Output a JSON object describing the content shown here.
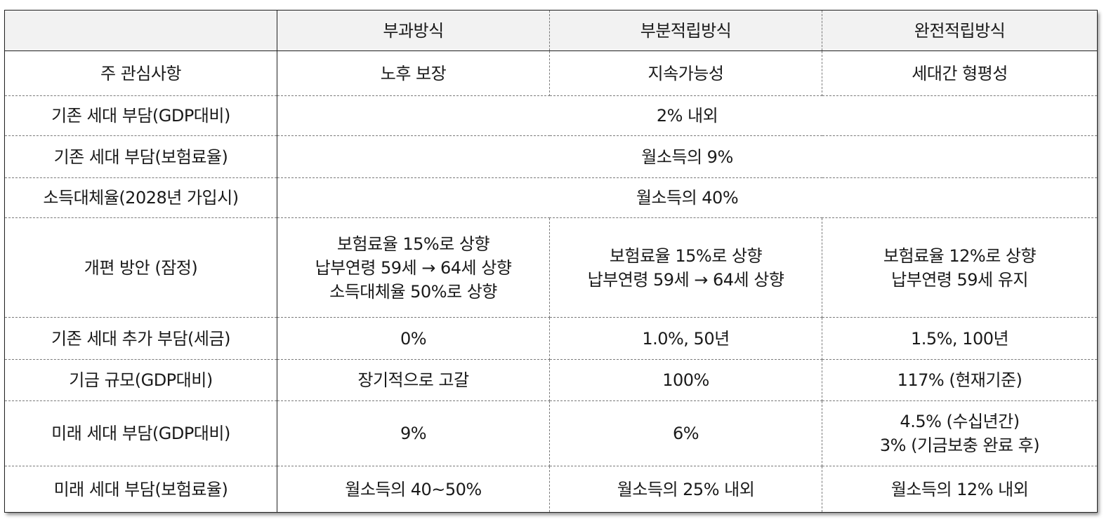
{
  "header": {
    "corner": "",
    "col1": "부과방식",
    "col2": "부분적립방식",
    "col3": "완전적립방식"
  },
  "rows": {
    "concern": {
      "label": "주 관심사항",
      "c1": "노후 보장",
      "c2": "지속가능성",
      "c3": "세대간 형평성"
    },
    "burden_gdp": {
      "label": "기존 세대 부담(GDP대비)",
      "merged": "2% 내외"
    },
    "burden_rate": {
      "label": "기존 세대 부담(보험료율)",
      "merged": "월소득의 9%"
    },
    "replacement": {
      "label": "소득대체율(2028년 가입시)",
      "merged": "월소득의 40%"
    },
    "reform": {
      "label": "개편 방안 (잠정)",
      "c1": [
        "보험료율 15%로 상향",
        "납부연령 59세 → 64세 상향",
        "소득대체율 50%로 상향"
      ],
      "c2": [
        "보험료율 15%로 상향",
        "납부연령 59세 → 64세 상향"
      ],
      "c3": [
        "보험료율 12%로 상향",
        "납부연령 59세 유지"
      ]
    },
    "extra_tax": {
      "label": "기존 세대 추가 부담(세금)",
      "c1": "0%",
      "c2": "1.0%, 50년",
      "c3": "1.5%, 100년"
    },
    "fund_size": {
      "label": "기금 규모(GDP대비)",
      "c1": "장기적으로 고갈",
      "c2": "100%",
      "c3": "117% (현재기준)"
    },
    "future_gdp": {
      "label": "미래 세대 부담(GDP대비)",
      "c1": "9%",
      "c2": "6%",
      "c3": [
        "4.5% (수십년간)",
        "3% (기금보충 완료 후)"
      ]
    },
    "future_rate": {
      "label": "미래 세대 부담(보험료율)",
      "c1": "월소득의 40~50%",
      "c2": "월소득의 25% 내외",
      "c3": "월소득의 12% 내외"
    }
  }
}
